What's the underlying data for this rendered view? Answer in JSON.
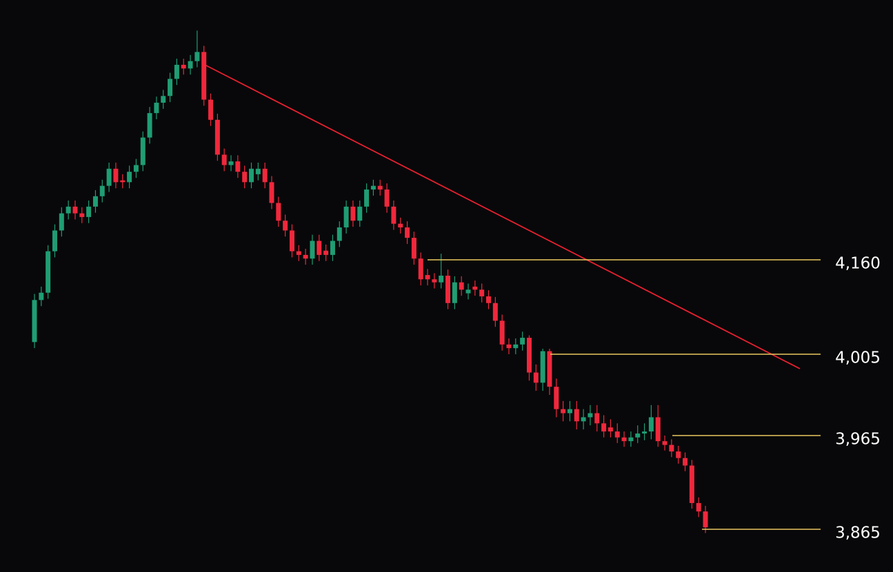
{
  "chart_data": {
    "type": "candlestick",
    "up_color": "#1f9d73",
    "down_color": "#f0283c",
    "level_color": "#e9c75f",
    "ylim": [
      3820,
      4585
    ],
    "yticks": [
      {
        "value": 4160,
        "label": "4,160"
      },
      {
        "value": 4005,
        "label": "4,005"
      },
      {
        "value": 3965,
        "label": "3,965"
      },
      {
        "value": 3865,
        "label": "3,865"
      }
    ],
    "open": [
      4025,
      4094,
      4106,
      4174,
      4208,
      4236,
      4247,
      4236,
      4230,
      4247,
      4264,
      4281,
      4309,
      4290,
      4287,
      4304,
      4315,
      4360,
      4400,
      4417,
      4428,
      4456,
      4479,
      4473,
      4485,
      4500,
      4422,
      4389,
      4332,
      4315,
      4321,
      4304,
      4287,
      4300,
      4309,
      4287,
      4253,
      4224,
      4208,
      4174,
      4168,
      4162,
      4191,
      4175,
      4168,
      4191,
      4213,
      4247,
      4224,
      4247,
      4275,
      4281,
      4275,
      4247,
      4219,
      4213,
      4196,
      4162,
      4135,
      4128,
      4123,
      4134,
      4089,
      4123,
      4105,
      4116,
      4111,
      4100,
      4089,
      4060,
      4021,
      4015,
      4021,
      4032,
      3996,
      3991,
      4010,
      3989,
      3978,
      3976,
      3978,
      3972,
      3974,
      3976,
      3971,
      3969,
      3967,
      3963,
      3959,
      3963,
      3966,
      3967,
      3974,
      3959,
      3955,
      3948,
      3941,
      3933,
      3893,
      3884
    ],
    "high": [
      4104,
      4116,
      4184,
      4218,
      4246,
      4257,
      4257,
      4246,
      4257,
      4274,
      4291,
      4319,
      4319,
      4300,
      4314,
      4325,
      4370,
      4410,
      4427,
      4438,
      4466,
      4489,
      4489,
      4495,
      4535,
      4510,
      4432,
      4399,
      4342,
      4331,
      4331,
      4314,
      4319,
      4319,
      4319,
      4297,
      4263,
      4234,
      4218,
      4184,
      4178,
      4201,
      4201,
      4185,
      4201,
      4223,
      4257,
      4257,
      4257,
      4285,
      4291,
      4291,
      4285,
      4257,
      4229,
      4223,
      4206,
      4172,
      4145,
      4138,
      4170,
      4144,
      4133,
      4133,
      4121,
      4126,
      4121,
      4110,
      4099,
      4070,
      4031,
      4031,
      4042,
      4036,
      4000,
      4014,
      4014,
      3993,
      3982,
      3982,
      3982,
      3978,
      3980,
      3980,
      3975,
      3973,
      3971,
      3967,
      3967,
      3970,
      3971,
      3980,
      3980,
      3965,
      3961,
      3954,
      3947,
      3939,
      3899,
      3890
    ],
    "low": [
      4015,
      4084,
      4096,
      4164,
      4198,
      4226,
      4226,
      4220,
      4220,
      4237,
      4254,
      4271,
      4277,
      4277,
      4277,
      4294,
      4305,
      4350,
      4390,
      4407,
      4418,
      4446,
      4463,
      4463,
      4475,
      4412,
      4379,
      4322,
      4305,
      4305,
      4294,
      4277,
      4277,
      4290,
      4277,
      4243,
      4214,
      4198,
      4164,
      4158,
      4152,
      4152,
      4158,
      4158,
      4158,
      4181,
      4203,
      4214,
      4214,
      4237,
      4265,
      4265,
      4237,
      4209,
      4203,
      4186,
      4152,
      4118,
      4118,
      4113,
      4113,
      4079,
      4079,
      4101,
      4095,
      4101,
      4090,
      4079,
      4050,
      4011,
      4005,
      4005,
      4011,
      3992,
      3987,
      3987,
      3985,
      3974,
      3972,
      3972,
      3968,
      3968,
      3970,
      3967,
      3963,
      3963,
      3957,
      3953,
      3953,
      3957,
      3960,
      3961,
      3953,
      3949,
      3942,
      3935,
      3927,
      3887,
      3878,
      3861
    ],
    "close": [
      4094,
      4106,
      4174,
      4208,
      4236,
      4247,
      4236,
      4230,
      4247,
      4264,
      4281,
      4309,
      4287,
      4287,
      4304,
      4315,
      4360,
      4400,
      4417,
      4428,
      4456,
      4479,
      4473,
      4485,
      4500,
      4422,
      4389,
      4332,
      4315,
      4321,
      4304,
      4287,
      4309,
      4309,
      4287,
      4253,
      4224,
      4208,
      4174,
      4168,
      4162,
      4191,
      4168,
      4168,
      4191,
      4213,
      4247,
      4224,
      4247,
      4275,
      4281,
      4275,
      4247,
      4219,
      4213,
      4196,
      4162,
      4128,
      4128,
      4123,
      4134,
      4089,
      4123,
      4111,
      4111,
      4111,
      4100,
      4089,
      4060,
      4021,
      4015,
      4021,
      4032,
      3996,
      3991,
      4010,
      3989,
      3978,
      3976,
      3978,
      3972,
      3974,
      3976,
      3971,
      3967,
      3967,
      3963,
      3959,
      3963,
      3966,
      3967,
      3974,
      3959,
      3955,
      3948,
      3941,
      3933,
      3893,
      3884,
      3867
    ]
  }
}
